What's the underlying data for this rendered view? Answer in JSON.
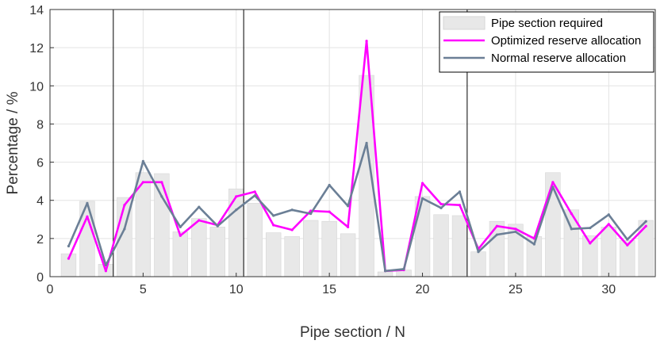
{
  "chart_data": {
    "type": "bar",
    "xlabel": "Pipe section / N",
    "ylabel": "Percentage / %",
    "xlim": [
      0,
      32.5
    ],
    "ylim": [
      0,
      14
    ],
    "x_ticks": [
      0,
      5,
      10,
      15,
      20,
      25,
      30
    ],
    "y_ticks": [
      0,
      2,
      4,
      6,
      8,
      10,
      12,
      14
    ],
    "grid": true,
    "legend_position": "top-right",
    "x": [
      1,
      2,
      3,
      4,
      5,
      6,
      7,
      8,
      9,
      10,
      11,
      12,
      13,
      14,
      15,
      16,
      17,
      18,
      19,
      20,
      21,
      22,
      23,
      24,
      25,
      26,
      27,
      28,
      29,
      30,
      31,
      32
    ],
    "vertical_lines_x": [
      3.4,
      10.4,
      22.4
    ],
    "series": [
      {
        "name": "Pipe section required",
        "kind": "bar",
        "color": "#e8e8e8",
        "values": [
          1.2,
          3.95,
          0.65,
          4.15,
          5.45,
          5.4,
          2.35,
          3.05,
          2.6,
          4.6,
          3.85,
          2.3,
          2.1,
          2.95,
          2.9,
          2.25,
          10.55,
          0.25,
          0.35,
          4.2,
          3.25,
          3.2,
          1.3,
          2.9,
          2.75,
          2.1,
          5.45,
          3.5,
          2.15,
          2.6,
          1.9,
          2.95
        ]
      },
      {
        "name": "Optimized reserve allocation",
        "kind": "line",
        "color": "#ff00ff",
        "values": [
          0.95,
          3.15,
          0.3,
          3.75,
          4.95,
          4.95,
          2.15,
          2.95,
          2.7,
          4.2,
          4.45,
          2.7,
          2.45,
          3.45,
          3.4,
          2.6,
          12.35,
          0.3,
          0.35,
          4.9,
          3.8,
          3.75,
          1.45,
          2.65,
          2.5,
          2.0,
          4.95,
          3.3,
          1.75,
          2.75,
          1.65,
          2.65
        ]
      },
      {
        "name": "Normal reserve allocation",
        "kind": "line",
        "color": "#6b7f96",
        "values": [
          1.6,
          3.85,
          0.6,
          2.5,
          6.05,
          4.2,
          2.6,
          3.65,
          2.65,
          3.5,
          4.25,
          3.2,
          3.5,
          3.3,
          4.8,
          3.7,
          7.0,
          0.3,
          0.4,
          4.1,
          3.6,
          4.45,
          1.3,
          2.2,
          2.35,
          1.7,
          4.7,
          2.5,
          2.55,
          3.25,
          1.95,
          2.9
        ]
      }
    ]
  }
}
